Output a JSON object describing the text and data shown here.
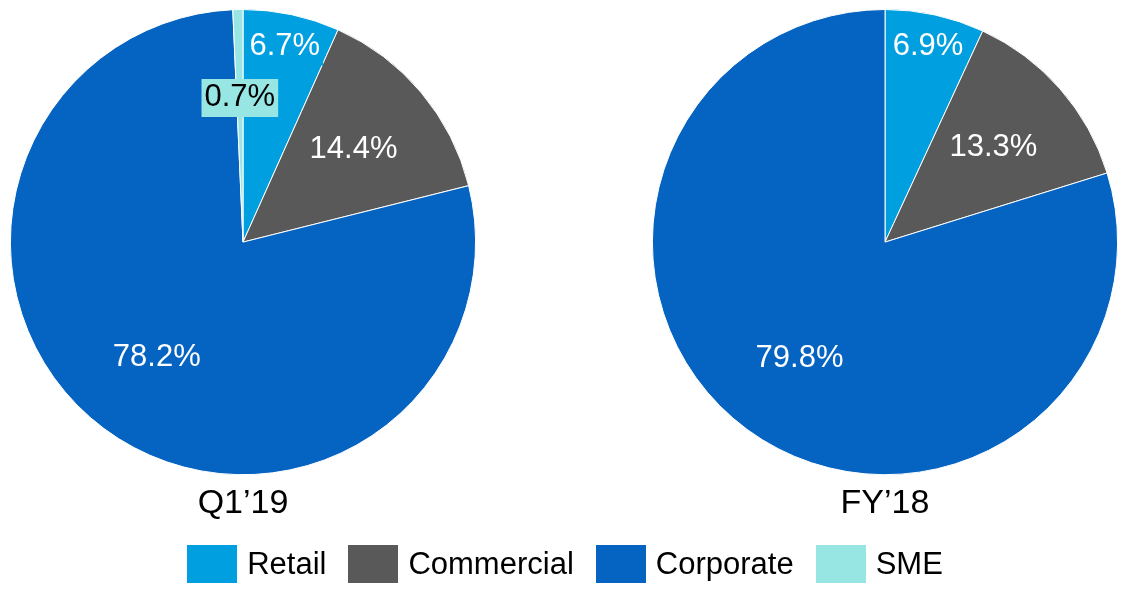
{
  "chart_data": [
    {
      "type": "pie",
      "title": "Q1’19",
      "categories": [
        "Retail",
        "Commercial",
        "Corporate",
        "SME"
      ],
      "values": [
        6.7,
        14.4,
        78.2,
        0.7
      ],
      "colors": [
        "#00a0e0",
        "#595959",
        "#0563c1",
        "#97e6e4"
      ],
      "value_labels": [
        "6.7%",
        "14.4%",
        "78.2%",
        "0.7%"
      ],
      "legend": "bottom"
    },
    {
      "type": "pie",
      "title": "FY’18",
      "categories": [
        null,
        null,
        null
      ],
      "values": [
        6.9,
        13.3,
        79.8
      ],
      "colors": [
        "#00a0e0",
        "#595959",
        "#0563c1"
      ],
      "value_labels": [
        "6.9%",
        "13.3%",
        "79.8%"
      ]
    }
  ]
}
